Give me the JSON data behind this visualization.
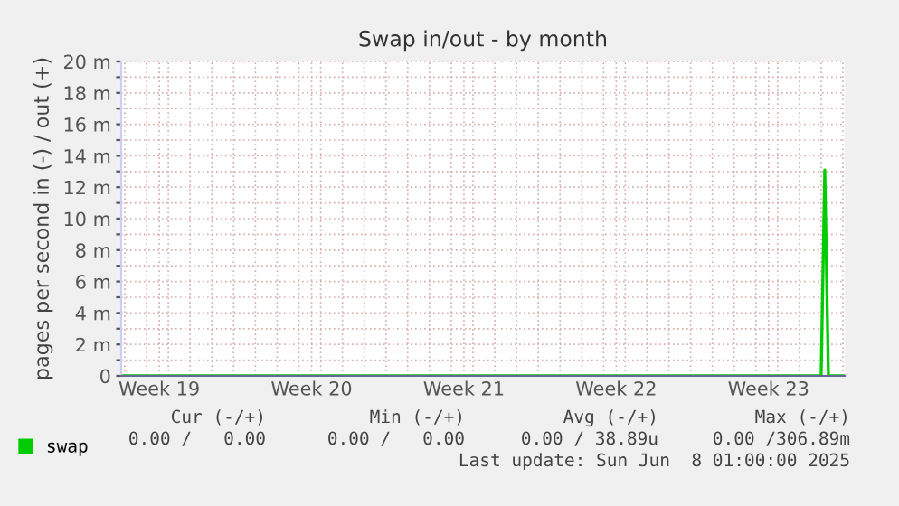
{
  "chart_data": {
    "type": "line",
    "title": "Swap in/out - by month",
    "ylabel": "pages per second in (-) / out (+)",
    "series": [
      {
        "name": "swap",
        "color": "#00cc00",
        "x": [
          "2025-05-05T20:00",
          "2025-06-07T00:00",
          "2025-06-07T04:00",
          "2025-06-07T08:00",
          "2025-06-08T02:00"
        ],
        "values": [
          0,
          0,
          13.1,
          0,
          0
        ]
      }
    ],
    "xlim": [
      "2025-05-05T20:00",
      "2025-06-08T02:00"
    ],
    "xticks": [
      {
        "value": "2025-05-07T14:00",
        "label": "Week 19"
      },
      {
        "value": "2025-05-14T14:00",
        "label": "Week 20"
      },
      {
        "value": "2025-05-21T14:00",
        "label": "Week 21"
      },
      {
        "value": "2025-05-28T14:00",
        "label": "Week 22"
      },
      {
        "value": "2025-06-04T14:00",
        "label": "Week 23"
      },
      {
        "value": "2025-05-06",
        "label": null
      },
      {
        "value": "2025-05-07",
        "label": null
      },
      {
        "value": "2025-05-08",
        "label": null
      },
      {
        "value": "2025-05-09",
        "label": null
      },
      {
        "value": "2025-05-10",
        "label": null
      },
      {
        "value": "2025-05-11",
        "label": null
      },
      {
        "value": "2025-05-12",
        "label": null
      },
      {
        "value": "2025-05-13",
        "label": null
      },
      {
        "value": "2025-05-14",
        "label": null
      },
      {
        "value": "2025-05-15",
        "label": null
      },
      {
        "value": "2025-05-16",
        "label": null
      },
      {
        "value": "2025-05-17",
        "label": null
      },
      {
        "value": "2025-05-18",
        "label": null
      },
      {
        "value": "2025-05-19",
        "label": null
      },
      {
        "value": "2025-05-20",
        "label": null
      },
      {
        "value": "2025-05-21",
        "label": null
      },
      {
        "value": "2025-05-22",
        "label": null
      },
      {
        "value": "2025-05-23",
        "label": null
      },
      {
        "value": "2025-05-24",
        "label": null
      },
      {
        "value": "2025-05-25",
        "label": null
      },
      {
        "value": "2025-05-26",
        "label": null
      },
      {
        "value": "2025-05-27",
        "label": null
      },
      {
        "value": "2025-05-28",
        "label": null
      },
      {
        "value": "2025-05-29",
        "label": null
      },
      {
        "value": "2025-05-30",
        "label": null
      },
      {
        "value": "2025-05-31",
        "label": null
      },
      {
        "value": "2025-06-01",
        "label": null
      },
      {
        "value": "2025-06-02",
        "label": null
      },
      {
        "value": "2025-06-03",
        "label": null
      },
      {
        "value": "2025-06-04",
        "label": null
      },
      {
        "value": "2025-06-05",
        "label": null
      },
      {
        "value": "2025-06-06",
        "label": null
      },
      {
        "value": "2025-06-07",
        "label": null
      },
      {
        "value": "2025-06-08",
        "label": null
      }
    ],
    "ylim": [
      0,
      20
    ],
    "yticks": [
      {
        "value": 0,
        "label": "0"
      },
      {
        "value": 2,
        "label": "2 m"
      },
      {
        "value": 4,
        "label": "4 m"
      },
      {
        "value": 6,
        "label": "6 m"
      },
      {
        "value": 8,
        "label": "8 m"
      },
      {
        "value": 10,
        "label": "10 m"
      },
      {
        "value": 12,
        "label": "12 m"
      },
      {
        "value": 14,
        "label": "14 m"
      },
      {
        "value": 16,
        "label": "16 m"
      },
      {
        "value": 18,
        "label": "18 m"
      },
      {
        "value": 20,
        "label": "20 m"
      },
      {
        "value": 1,
        "label": null
      },
      {
        "value": 3,
        "label": null
      },
      {
        "value": 5,
        "label": null
      },
      {
        "value": 7,
        "label": null
      },
      {
        "value": 9,
        "label": null
      },
      {
        "value": 11,
        "label": null
      },
      {
        "value": 13,
        "label": null
      },
      {
        "value": 15,
        "label": null
      },
      {
        "value": 17,
        "label": null
      },
      {
        "value": 19,
        "label": null
      }
    ],
    "grid": true,
    "legend": "bottom",
    "annotations": [
      "Cur (-/+)",
      "Min (-/+)",
      "Avg (-/+)",
      "Max (-/+)",
      "0.00 /   0.00",
      "0.00 /   0.00",
      "0.00 / 38.89u",
      "0.00 /306.89m",
      "Last update: Sun Jun  8 01:00:00 2025"
    ]
  }
}
